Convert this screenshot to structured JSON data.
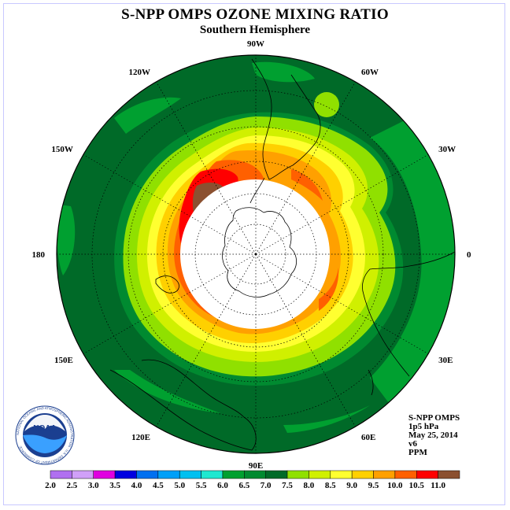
{
  "title": "S-NPP OMPS OZONE MIXING RATIO",
  "subtitle": "Southern Hemisphere",
  "longitude_labels": [
    "90W",
    "60W",
    "30W",
    "0",
    "30E",
    "60E",
    "90E",
    "120E",
    "150E",
    "180",
    "150W",
    "120W"
  ],
  "info": {
    "instrument": "S-NPP OMPS",
    "level": "1p5 hPa",
    "date": "May 25, 2014",
    "version": "v6",
    "units": "PPM"
  },
  "logo": {
    "text": "NOAA",
    "ring_text": "NATIONAL OCEANIC AND ATMOSPHERIC ADMINISTRATION · U.S. DEPARTMENT OF COMMERCE"
  },
  "colorbar": {
    "ticks": [
      "2.0",
      "2.5",
      "3.0",
      "3.5",
      "4.0",
      "4.5",
      "5.0",
      "5.5",
      "6.0",
      "6.5",
      "7.0",
      "7.5",
      "8.0",
      "8.5",
      "9.0",
      "9.5",
      "10.0",
      "10.5",
      "11.0"
    ],
    "colors": [
      "#b070f0",
      "#d0a0f8",
      "#e000e0",
      "#0000e0",
      "#0070f0",
      "#00a0f8",
      "#00c0f0",
      "#20e8d0",
      "#00a030",
      "#008a30",
      "#006a28",
      "#90e000",
      "#d0f000",
      "#ffff30",
      "#ffd000",
      "#ffa000",
      "#ff6000",
      "#ff0000",
      "#8b5030"
    ]
  },
  "chart_data": {
    "type": "heatmap",
    "projection": "south polar stereographic",
    "title": "S-NPP OMPS OZONE MIXING RATIO",
    "subtitle": "Southern Hemisphere",
    "units": "PPM",
    "pressure_level": "1p5 hPa",
    "date": "May 25, 2014",
    "color_levels": [
      2.0,
      2.5,
      3.0,
      3.5,
      4.0,
      4.5,
      5.0,
      5.5,
      6.0,
      6.5,
      7.0,
      7.5,
      8.0,
      8.5,
      9.0,
      9.5,
      10.0,
      10.5,
      11.0
    ],
    "observed_range": [
      6.5,
      11.0
    ],
    "features": [
      {
        "region": "outer band (low/mid latitudes)",
        "value_range": [
          6.5,
          7.0
        ]
      },
      {
        "region": "maximum near 120W-150W, edge of polar night",
        "value_range": [
          10.5,
          11.0
        ]
      },
      {
        "region": "polar cap (no data)",
        "value": null
      }
    ]
  }
}
